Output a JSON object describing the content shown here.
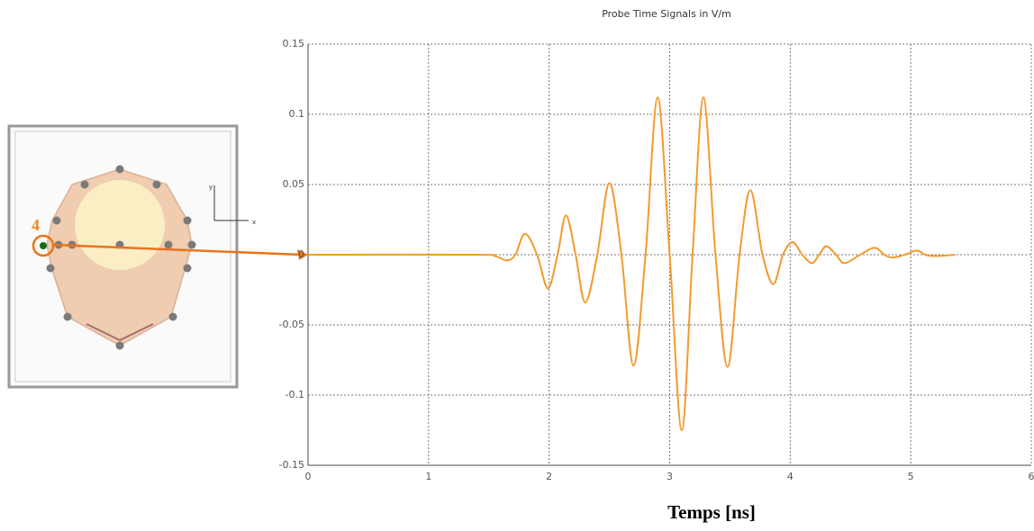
{
  "chart_data": {
    "type": "line",
    "title": "Probe Time Signals in V/m",
    "x_label": "Temps [ns]",
    "x": [
      0,
      1.4,
      1.55,
      1.65,
      1.72,
      1.8,
      1.9,
      1.99,
      2.07,
      2.14,
      2.22,
      2.3,
      2.4,
      2.5,
      2.6,
      2.7,
      2.8,
      2.9,
      3.0,
      3.1,
      3.19,
      3.28,
      3.38,
      3.48,
      3.58,
      3.67,
      3.77,
      3.86,
      3.94,
      4.02,
      4.1,
      4.18,
      4.24,
      4.3,
      4.38,
      4.45,
      4.58,
      4.7,
      4.78,
      4.85,
      4.95,
      5.05,
      5.12,
      5.2,
      5.37
    ],
    "series": [
      {
        "color": "#f39a2e",
        "values": [
          0,
          0,
          -0.001,
          -0.004,
          0,
          0.015,
          0,
          -0.024,
          0,
          0.028,
          0,
          -0.034,
          0,
          0.051,
          0,
          -0.079,
          0,
          0.112,
          0,
          -0.125,
          0,
          0.112,
          0,
          -0.08,
          0,
          0.046,
          0,
          -0.021,
          0,
          0.009,
          0,
          -0.006,
          0,
          0.006,
          0,
          -0.006,
          0,
          0.005,
          0,
          -0.002,
          0,
          0.003,
          0,
          -0.001,
          0
        ]
      }
    ],
    "xlim": [
      0,
      6
    ],
    "xticks": [
      0,
      1,
      2,
      3,
      4,
      5,
      6
    ],
    "ylim": [
      -0.15,
      0.15
    ],
    "yticks": [
      -0.15,
      -0.1,
      -0.05,
      0,
      0.05,
      0.1,
      0.15
    ],
    "grid": true
  },
  "model": {
    "probe_label": "4",
    "axis_labels": [
      "y",
      "x"
    ]
  }
}
